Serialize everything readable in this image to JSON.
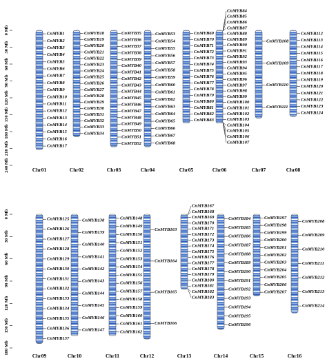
{
  "panels": [
    {
      "axis": {
        "range": [
          0,
          240
        ],
        "ticks": [
          {
            "value": 0,
            "label": "0 Mb"
          },
          {
            "value": 30,
            "label": "30 Mb"
          },
          {
            "value": 60,
            "label": "60 Mb"
          },
          {
            "value": 90,
            "label": "90 Mb"
          },
          {
            "value": 120,
            "label": "120 Mb"
          },
          {
            "value": 150,
            "label": "150 Mb"
          },
          {
            "value": 180,
            "label": "180 Mb"
          },
          {
            "value": 210,
            "label": "210 Mb"
          },
          {
            "value": 240,
            "label": "240 Mb"
          }
        ]
      },
      "chromosomes": [
        {
          "name": "Chr01",
          "length": 212,
          "genes": [
            "CnMYB1",
            "CnMYB2",
            "CnMYB3",
            "CnMYB4",
            "CnMYB5",
            "CnMYB6",
            "CnMYB7",
            "CnMYB8",
            "CnMYB9",
            "CnMYB10",
            "CnMYB11",
            "CnMYB12",
            "CnMYB13",
            "CnMYB14",
            "CnMYB15",
            "CnMYB16",
            "CnMYB17"
          ]
        },
        {
          "name": "Chr02",
          "length": 189,
          "genes": [
            "CnMYB18",
            "CnMYB19",
            "CnMYB20",
            "CnMYB21",
            "CnMYB22",
            "CnMYB23",
            "CnMYB24",
            "CnMYB25",
            "CnMYB26",
            "CnMYB27",
            "CnMYB28",
            "CnMYB29",
            "CnMYB30",
            "CnMYB31",
            "CnMYB32",
            "CnMYB33",
            "CnMYB34"
          ]
        },
        {
          "name": "Chr03",
          "length": 207,
          "genes": [
            "CnMYB35",
            "CnMYB36",
            "CnMYB37",
            "CnMYB38",
            "CnMYB39",
            "CnMYB40",
            "CnMYB41",
            "CnMYB42",
            "CnMYB43",
            "CnMYB44",
            "CnMYB45",
            "CnMYB46",
            "CnMYB47",
            "CnMYB48",
            "CnMYB49",
            "CnMYB50",
            "CnMYB51",
            "CnMYB52"
          ]
        },
        {
          "name": "Chr04",
          "length": 207,
          "genes": [
            "CnMYB53",
            "CnMYB54",
            "CnMYB55",
            "CnMYB56",
            "CnMYB57",
            "CnMYB58",
            "CnMYB59",
            "CnMYB60",
            "CnMYB61",
            "CnMYB62",
            "CnMYB63",
            "CnMYB64",
            "CnMYB65",
            "CnMYB66",
            "CnMYB67",
            "CnMYB68"
          ]
        },
        {
          "name": "Chr05",
          "length": 165,
          "genes": [
            "CnMYB69",
            "CnMYB70",
            "CnMYB71",
            "CnMYB72",
            "CnMYB73",
            "CnMYB74",
            "CnMYB75",
            "CnMYB76",
            "CnMYB77",
            "CnMYB78",
            "CnMYB79",
            "CnMYB80",
            "CnMYB81",
            "CnMYB82",
            "CnMYB83"
          ]
        },
        {
          "name": "Chr06",
          "length": 165,
          "genes": [
            "CnMYB84",
            "CnMYB85",
            "CnMYB86",
            "CnMYB87",
            "CnMYB88",
            "CnMYB89",
            "CnMYB90",
            "CnMYB91",
            "CnMYB92",
            "CnMYB93",
            "CnMYB94",
            "CnMYB95",
            "CnMYB96",
            "CnMYB97",
            "CnMYB98",
            "CnMYB99",
            "CnMYB100",
            "CnMYB101",
            "CnMYB102",
            "CnMYB103",
            "CnMYB104",
            "CnMYB105",
            "CnMYB106",
            "CnMYB107"
          ]
        },
        {
          "name": "Chr07",
          "length": 156,
          "genes": [
            "CnMYB108",
            "CnMYB109",
            "CnMYB110",
            "CnMYB111"
          ]
        },
        {
          "name": "Chr08",
          "length": 153,
          "genes": [
            "CnMYB112",
            "CnMYB113",
            "CnMYB114",
            "CnMYB115",
            "CnMYB116",
            "CnMYB117",
            "CnMYB118",
            "CnMYB119",
            "CnMYB120",
            "CnMYB121",
            "CnMYB122",
            "CnMYB123",
            "CnMYB124"
          ]
        }
      ]
    },
    {
      "axis": {
        "range": [
          0,
          180
        ],
        "ticks": [
          {
            "value": 0,
            "label": "0 Mb"
          },
          {
            "value": 30,
            "label": "30 Mb"
          },
          {
            "value": 60,
            "label": "60 Mb"
          },
          {
            "value": 90,
            "label": "90 Mb"
          },
          {
            "value": 120,
            "label": "120 Mb"
          },
          {
            "value": 150,
            "label": "150 Mb"
          },
          {
            "value": 180,
            "label": "180 Mb"
          }
        ]
      },
      "chromosomes": [
        {
          "name": "Chr09",
          "length": 174,
          "genes": [
            "CnMYB125",
            "CnMYB126",
            "CnMYB127",
            "CnMYB128",
            "CnMYB129",
            "CnMYB130",
            "CnMYB131",
            "CnMYB132",
            "CnMYB133",
            "CnMYB134",
            "CnMYB135",
            "CnMYB136",
            "CnMYB137"
          ]
        },
        {
          "name": "Chr10",
          "length": 164,
          "genes": [
            "CnMYB138",
            "CnMYB139",
            "CnMYB140",
            "CnMYB141",
            "CnMYB142",
            "CnMYB143",
            "CnMYB144",
            "CnMYB145",
            "CnMYB146",
            "CnMYB147"
          ]
        },
        {
          "name": "Chr11",
          "length": 164,
          "genes": [
            "CnMYB148",
            "CnMYB149",
            "CnMYB150",
            "CnMYB151",
            "CnMYB152",
            "CnMYB153",
            "CnMYB154",
            "CnMYB155",
            "CnMYB156",
            "CnMYB157",
            "CnMYB158",
            "CnMYB159",
            "CnMYB160",
            "CnMYB161",
            "CnMYB162"
          ]
        },
        {
          "name": "Chr12",
          "length": 168,
          "genes": [
            "CnMYB163",
            "CnMYB164",
            "CnMYB165",
            "CnMYB166"
          ]
        },
        {
          "name": "Chr13",
          "length": 101,
          "genes": [
            "CnMYB167",
            "CnMYB168",
            "CnMYB169",
            "CnMYB170",
            "CnMYB171",
            "CnMYB172",
            "CnMYB173",
            "CnMYB174",
            "CnMYB175",
            "CnMYB176",
            "CnMYB177",
            "CnMYB178",
            "CnMYB179",
            "CnMYB180",
            "CnMYB181",
            "CnMYB182",
            "CnMYB183"
          ]
        },
        {
          "name": "Chr14",
          "length": 155,
          "genes": [
            "CnMYB184",
            "CnMYB185",
            "CnMYB186",
            "CnMYB187",
            "CnMYB188",
            "CnMYB189",
            "CnMYB190",
            "CnMYB191",
            "CnMYB192",
            "CnMYB193",
            "CnMYB194",
            "CnMYB195",
            "CnMYB196"
          ]
        },
        {
          "name": "Chr15",
          "length": 110,
          "genes": [
            "CnMYB197",
            "CnMYB198",
            "CnMYB199",
            "CnMYB200",
            "CnMYB201",
            "CnMYB202",
            "CnMYB203",
            "CnMYB204",
            "CnMYB205",
            "CnMYB206",
            "CnMYB207"
          ]
        },
        {
          "name": "Chr16",
          "length": 133,
          "genes": [
            "CnMYB208",
            "CnMYB209",
            "CnMYB210",
            "CnMYB211",
            "CnMYB212",
            "CnMYB213",
            "CnMYB214"
          ]
        }
      ]
    }
  ]
}
